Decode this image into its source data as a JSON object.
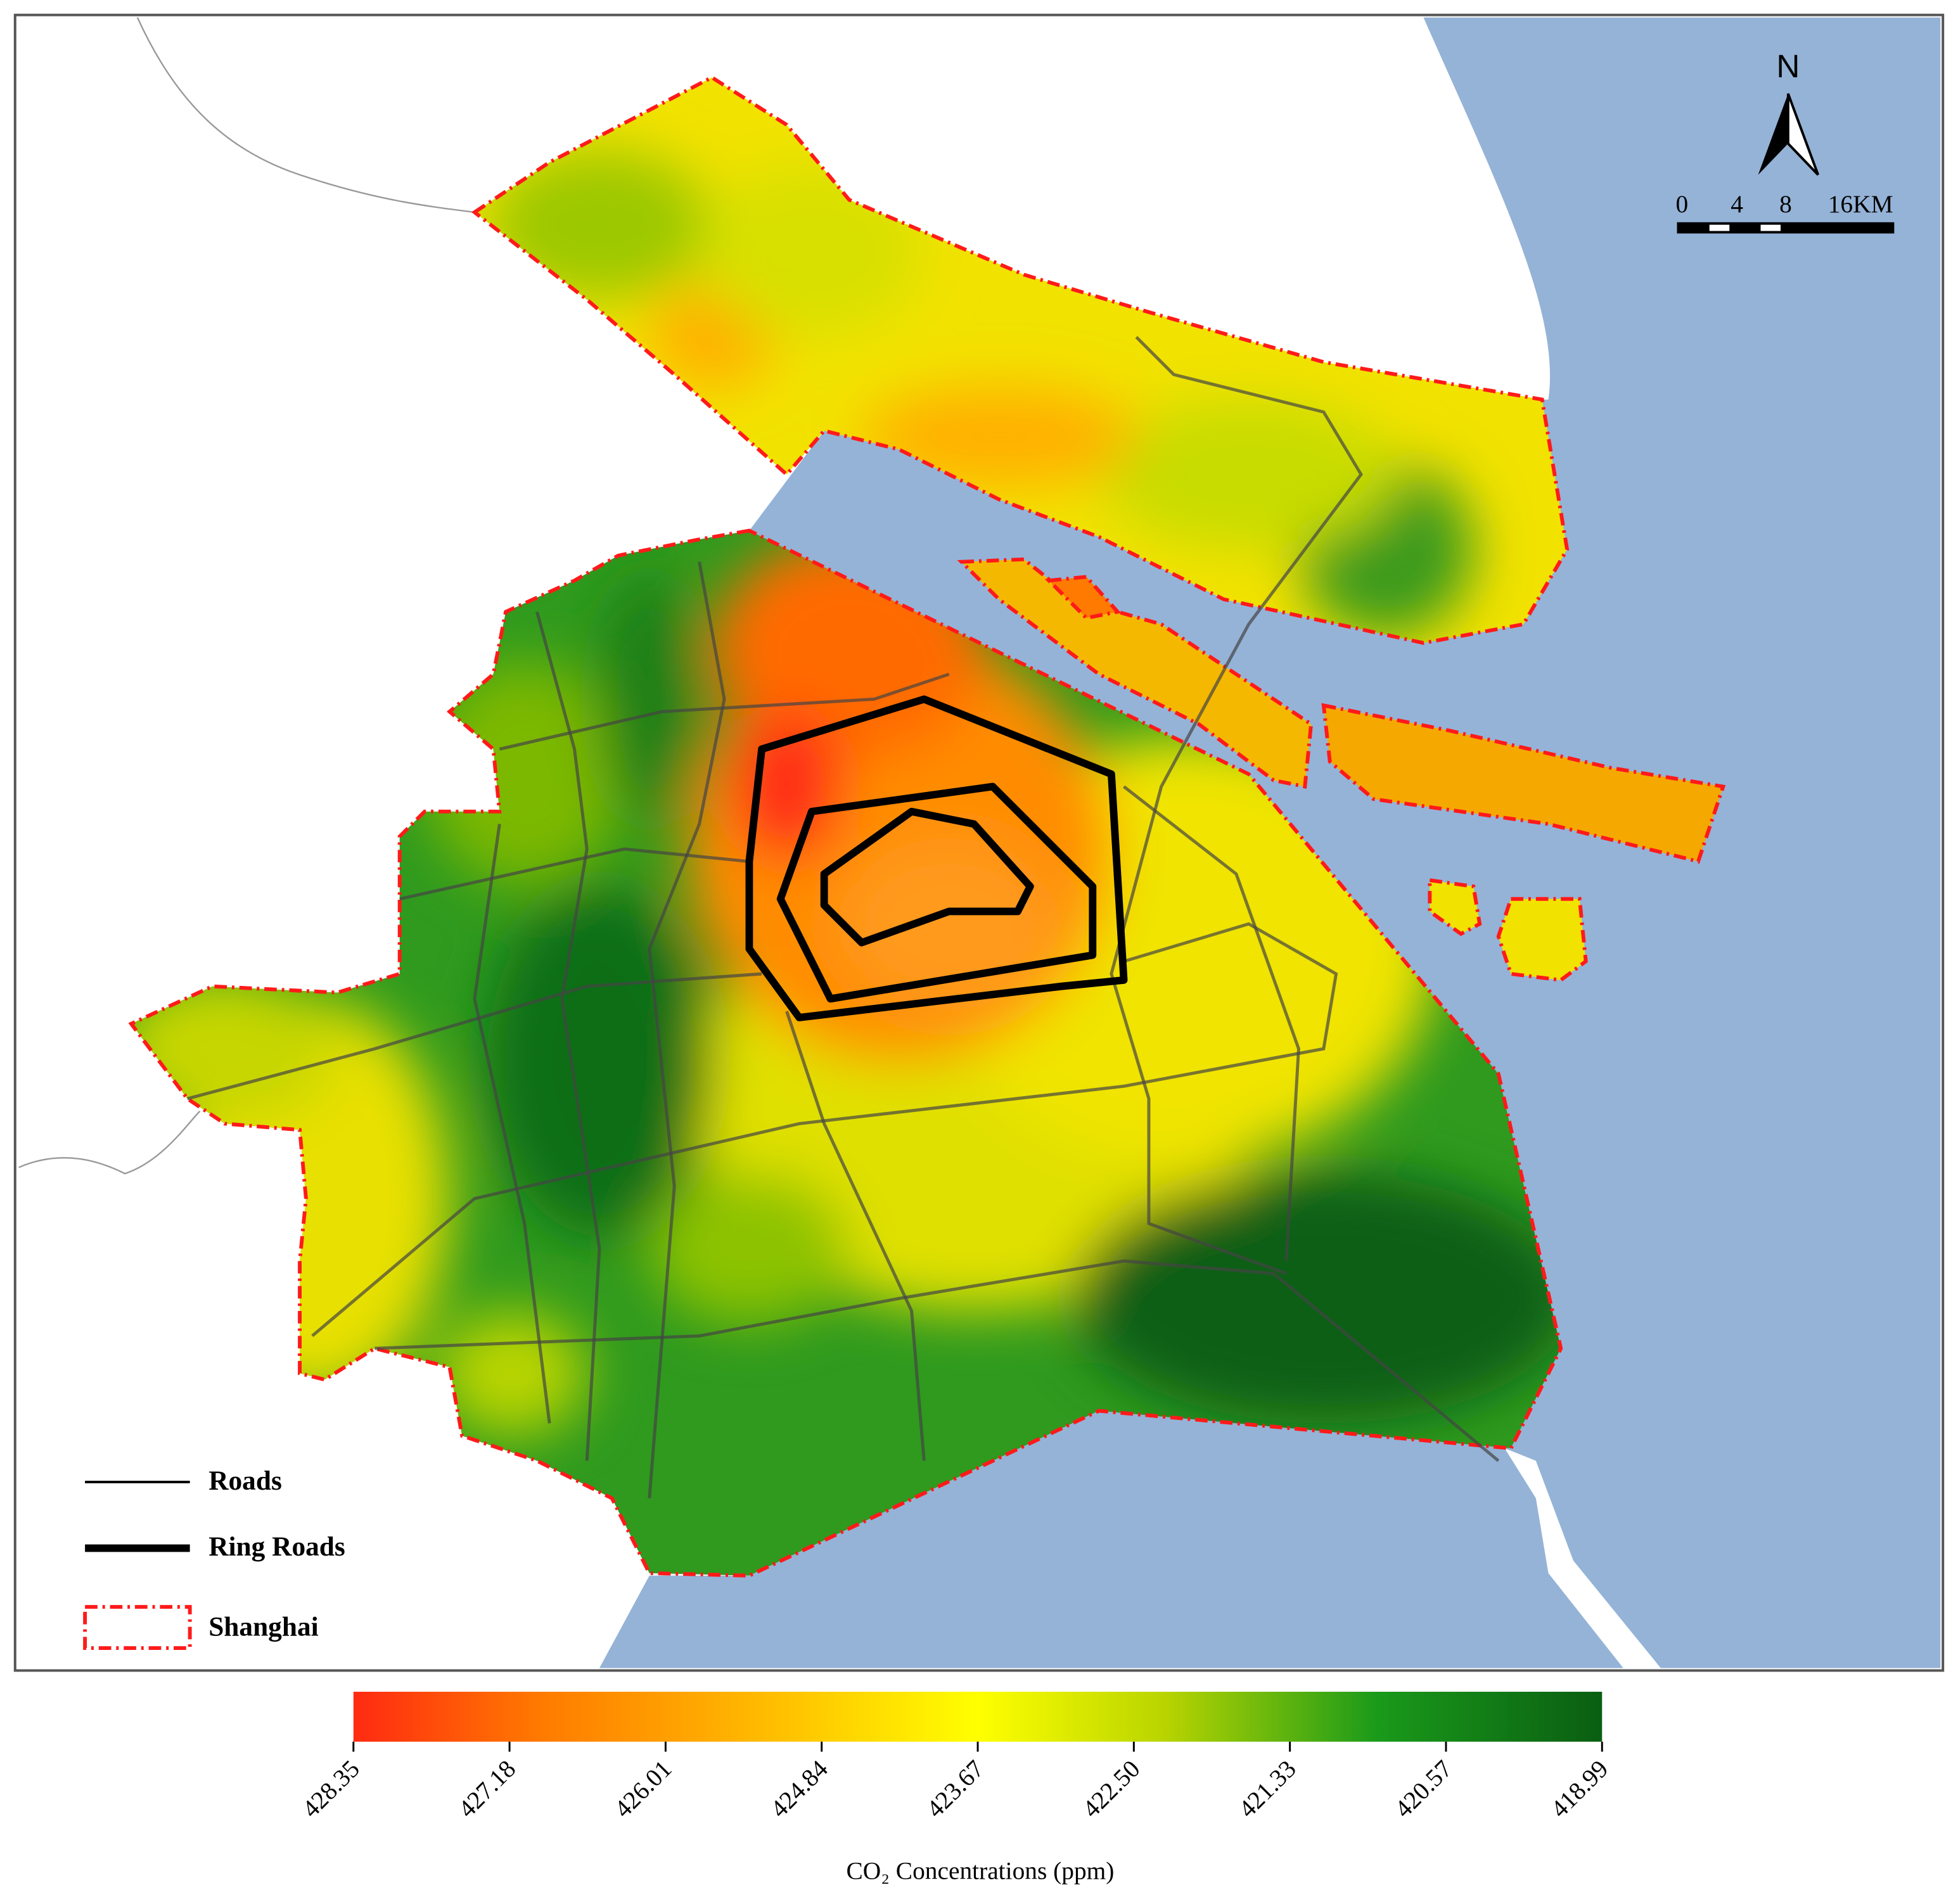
{
  "north_label": "N",
  "scale_bar": {
    "labels": [
      "0",
      "4",
      "8",
      "16KM"
    ]
  },
  "legend": {
    "items": [
      "Roads",
      "Ring Roads",
      "Shanghai"
    ]
  },
  "colorbar": {
    "ticks": [
      "428.35",
      "427.18",
      "426.01",
      "424.84",
      "423.67",
      "422.50",
      "421.33",
      "420.57",
      "418.99"
    ],
    "label": "CO₂ Concentrations (ppm)"
  }
}
